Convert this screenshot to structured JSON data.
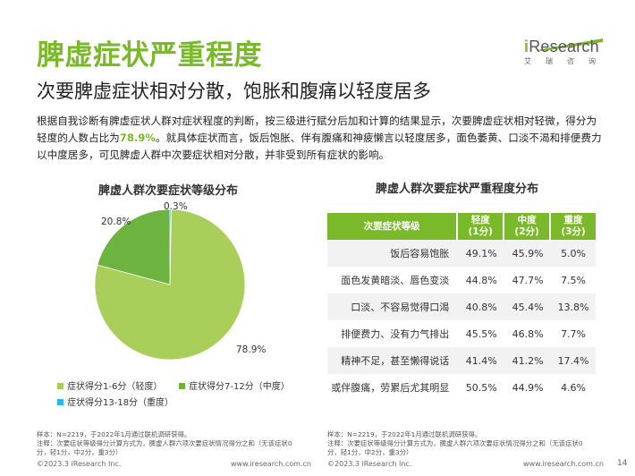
{
  "title": "脾虚症状严重程度",
  "subtitle": "次要脾虚症状相对分散，饱胀和腹痛以轻度居多",
  "logo": {
    "word_i": "i",
    "word_rest": "Research",
    "cn": [
      "艾",
      "瑞",
      "咨",
      "询"
    ]
  },
  "description": {
    "part1": "根据自我诊断有脾虚症状人群对症状程度的判断，按三级进行赋分后加和计算的结果显示，次要脾虚症状相对轻微，得分为轻度的人数占比为",
    "highlight": "78.9%",
    "part2": "。就具体症状而言，饭后饱胀、伴有腹痛和神疲懒言以轻度居多，面色萎黄、口淡不渴和排便费力以中度居多，可见脾虚人群中次要症状相对分散，并非受到所有症状的影响。"
  },
  "pie": {
    "title": "脾虚人群次要症状等级分布",
    "labels": [
      "78.9%",
      "20.8%",
      "0.3%"
    ],
    "legend": [
      "症状得分1-6分（轻度）",
      "症状得分7-12分（中度）",
      "症状得分13-18分（重度）"
    ]
  },
  "table": {
    "title": "脾虚人群次要症状严重程度分布",
    "headers": [
      "次要症状等级",
      "轻度\n(1分)",
      "中度\n(2分)",
      "重度\n(3分)"
    ],
    "rows": [
      [
        "饭后容易饱胀",
        "49.1%",
        "45.9%",
        "5.0%"
      ],
      [
        "面色发黄暗淡、唇色变淡",
        "44.8%",
        "47.7%",
        "7.5%"
      ],
      [
        "口淡、不容易觉得口渴",
        "40.8%",
        "45.4%",
        "13.8%"
      ],
      [
        "排便费力、没有力气排出",
        "45.5%",
        "46.8%",
        "7.7%"
      ],
      [
        "精神不足，甚至懒得说话",
        "41.4%",
        "41.2%",
        "17.4%"
      ],
      [
        "或伴腹痛，劳累后尤其明显",
        "50.5%",
        "44.9%",
        "4.6%"
      ]
    ]
  },
  "chart_data": [
    {
      "type": "pie",
      "title": "脾虚人群次要症状等级分布",
      "categories": [
        "症状得分1-6分（轻度）",
        "症状得分7-12分（中度）",
        "症状得分13-18分（重度）"
      ],
      "values": [
        78.9,
        20.8,
        0.3
      ],
      "colors": [
        "#a9cf5a",
        "#6cb43f",
        "#29b7e8"
      ]
    },
    {
      "type": "table",
      "title": "脾虚人群次要症状严重程度分布",
      "columns": [
        "次要症状等级",
        "轻度(1分)",
        "中度(2分)",
        "重度(3分)"
      ],
      "rows": [
        [
          "饭后容易饱胀",
          49.1,
          45.9,
          5.0
        ],
        [
          "面色发黄暗淡、唇色变淡",
          44.8,
          47.7,
          7.5
        ],
        [
          "口淡、不容易觉得口渴",
          40.8,
          45.4,
          13.8
        ],
        [
          "排便费力、没有力气排出",
          45.5,
          46.8,
          7.7
        ],
        [
          "精神不足，甚至懒得说话",
          41.4,
          41.2,
          17.4
        ],
        [
          "或伴腹痛，劳累后尤其明显",
          50.5,
          44.9,
          4.6
        ]
      ]
    }
  ],
  "notes": {
    "left": [
      "样本：N=2219，于2022年1月通过联机调研获得。",
      "注释：次要症状等级得分计算方式为，脾虚人群六项次要症状情况得分之和（无该症状0",
      "分，轻1分，中2分，重3分）"
    ],
    "right": [
      "样本：N=2219，于2022年1月通过联机调研获得。",
      "注释：次要症状等级得分计算方式为，脾虚人群六项次要症状情况得分之和（无该症状0",
      "分，轻1分，中2分，重3分）"
    ]
  },
  "footer": {
    "copyright_left": "©2023.3 iResearch Inc.",
    "url_left": "www.iresearch.com.cn",
    "copyright_right": "©2023.3 iResearch Inc.",
    "url_right": "www.iresearch.com.cn",
    "page": "14"
  }
}
